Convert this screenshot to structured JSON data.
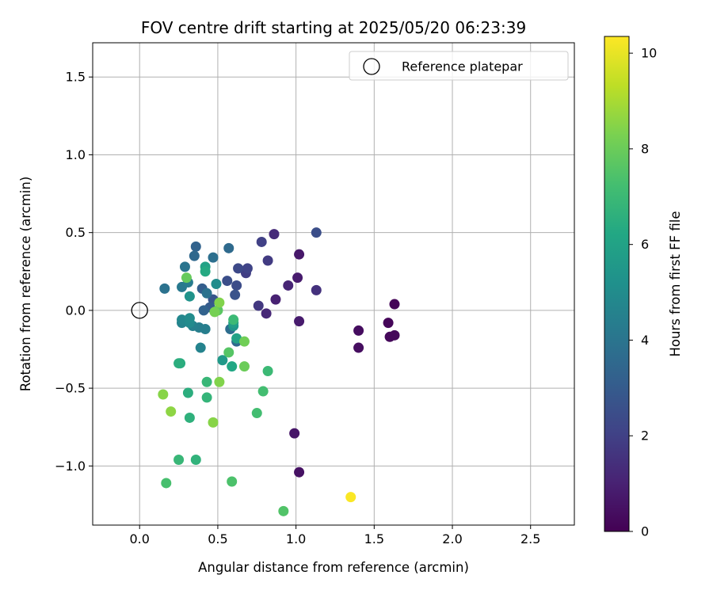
{
  "chart_data": {
    "type": "scatter",
    "title": "FOV centre drift starting at 2025/05/20 06:23:39",
    "xlabel": "Angular distance from reference (arcmin)",
    "ylabel": "Rotation from reference (arcmin)",
    "xlim": [
      -0.3,
      2.78
    ],
    "ylim": [
      -1.38,
      1.72
    ],
    "xticks": [
      0.0,
      0.5,
      1.0,
      1.5,
      2.0,
      2.5
    ],
    "xtick_labels": [
      "0.0",
      "0.5",
      "1.0",
      "1.5",
      "2.0",
      "2.5"
    ],
    "yticks": [
      -1.0,
      -0.5,
      0.0,
      0.5,
      1.0,
      1.5
    ],
    "ytick_labels": [
      "−1.0",
      "−0.5",
      "0.0",
      "0.5",
      "1.0",
      "1.5"
    ],
    "grid": true,
    "legend": {
      "placement": "top-right",
      "entries": [
        {
          "label": "Reference platepar",
          "marker": "open-circle"
        }
      ]
    },
    "reference_point": {
      "x": 0.0,
      "y": 0.0
    },
    "colorbar": {
      "label": "Hours from first FF file",
      "colormap": "viridis",
      "range": [
        0,
        10.35
      ],
      "ticks": [
        0,
        2,
        4,
        6,
        8,
        10
      ],
      "tick_labels": [
        "0",
        "2",
        "4",
        "6",
        "8",
        "10"
      ]
    },
    "points": [
      {
        "x": 1.63,
        "y": 0.04,
        "c": 0.1
      },
      {
        "x": 1.59,
        "y": -0.08,
        "c": 0.15
      },
      {
        "x": 1.6,
        "y": -0.17,
        "c": 0.2
      },
      {
        "x": 1.63,
        "y": -0.16,
        "c": 0.2
      },
      {
        "x": 1.4,
        "y": -0.13,
        "c": 0.35
      },
      {
        "x": 1.4,
        "y": -0.24,
        "c": 0.4
      },
      {
        "x": 1.02,
        "y": -1.04,
        "c": 0.5
      },
      {
        "x": 0.99,
        "y": -0.79,
        "c": 0.6
      },
      {
        "x": 1.02,
        "y": 0.36,
        "c": 0.7
      },
      {
        "x": 1.01,
        "y": 0.21,
        "c": 0.8
      },
      {
        "x": 1.02,
        "y": -0.07,
        "c": 0.8
      },
      {
        "x": 0.87,
        "y": 0.07,
        "c": 1.0
      },
      {
        "x": 0.95,
        "y": 0.16,
        "c": 1.1
      },
      {
        "x": 0.81,
        "y": -0.02,
        "c": 1.2
      },
      {
        "x": 0.86,
        "y": 0.49,
        "c": 1.3
      },
      {
        "x": 1.13,
        "y": 0.13,
        "c": 1.5
      },
      {
        "x": 0.76,
        "y": 0.03,
        "c": 1.7
      },
      {
        "x": 0.82,
        "y": 0.32,
        "c": 1.8
      },
      {
        "x": 0.68,
        "y": 0.24,
        "c": 1.9
      },
      {
        "x": 0.78,
        "y": 0.44,
        "c": 2.0
      },
      {
        "x": 0.69,
        "y": 0.27,
        "c": 2.1
      },
      {
        "x": 0.63,
        "y": 0.27,
        "c": 2.3
      },
      {
        "x": 0.62,
        "y": 0.16,
        "c": 2.4
      },
      {
        "x": 0.56,
        "y": 0.19,
        "c": 2.5
      },
      {
        "x": 1.13,
        "y": 0.5,
        "c": 2.5
      },
      {
        "x": 0.61,
        "y": 0.1,
        "c": 2.7
      },
      {
        "x": 0.47,
        "y": 0.07,
        "c": 2.8
      },
      {
        "x": 0.45,
        "y": 0.02,
        "c": 3.0
      },
      {
        "x": 0.4,
        "y": 0.14,
        "c": 3.1
      },
      {
        "x": 0.41,
        "y": 0.0,
        "c": 3.3
      },
      {
        "x": 0.36,
        "y": 0.41,
        "c": 3.3
      },
      {
        "x": 0.35,
        "y": 0.35,
        "c": 3.5
      },
      {
        "x": 0.57,
        "y": 0.4,
        "c": 3.6
      },
      {
        "x": 0.62,
        "y": -0.2,
        "c": 3.6
      },
      {
        "x": 0.58,
        "y": -0.12,
        "c": 3.7
      },
      {
        "x": 0.47,
        "y": 0.34,
        "c": 3.8
      },
      {
        "x": 0.43,
        "y": 0.11,
        "c": 3.9
      },
      {
        "x": 0.16,
        "y": 0.14,
        "c": 3.9
      },
      {
        "x": 0.29,
        "y": 0.28,
        "c": 4.0
      },
      {
        "x": 0.27,
        "y": 0.15,
        "c": 4.2
      },
      {
        "x": 0.31,
        "y": 0.18,
        "c": 4.3
      },
      {
        "x": 0.42,
        "y": -0.12,
        "c": 4.4
      },
      {
        "x": 0.38,
        "y": -0.11,
        "c": 4.4
      },
      {
        "x": 0.34,
        "y": -0.1,
        "c": 4.5
      },
      {
        "x": 0.39,
        "y": -0.24,
        "c": 4.6
      },
      {
        "x": 0.27,
        "y": -0.08,
        "c": 4.6
      },
      {
        "x": 0.27,
        "y": -0.06,
        "c": 4.8
      },
      {
        "x": 0.32,
        "y": -0.08,
        "c": 4.9
      },
      {
        "x": 0.32,
        "y": -0.05,
        "c": 5.0
      },
      {
        "x": 0.49,
        "y": 0.17,
        "c": 5.0
      },
      {
        "x": 0.32,
        "y": 0.09,
        "c": 5.3
      },
      {
        "x": 0.6,
        "y": -0.1,
        "c": 5.4
      },
      {
        "x": 0.53,
        "y": -0.32,
        "c": 5.6
      },
      {
        "x": 0.6,
        "y": -0.08,
        "c": 5.8
      },
      {
        "x": 0.62,
        "y": -0.18,
        "c": 6.0
      },
      {
        "x": 0.42,
        "y": 0.28,
        "c": 6.0
      },
      {
        "x": 0.59,
        "y": -0.36,
        "c": 6.2
      },
      {
        "x": 0.42,
        "y": 0.25,
        "c": 6.3
      },
      {
        "x": 0.26,
        "y": -0.34,
        "c": 6.4
      },
      {
        "x": 0.25,
        "y": -0.34,
        "c": 6.5
      },
      {
        "x": 0.31,
        "y": -0.53,
        "c": 6.5
      },
      {
        "x": 0.32,
        "y": -0.69,
        "c": 6.6
      },
      {
        "x": 0.36,
        "y": -0.96,
        "c": 6.7
      },
      {
        "x": 0.43,
        "y": -0.56,
        "c": 6.8
      },
      {
        "x": 0.43,
        "y": -0.46,
        "c": 6.9
      },
      {
        "x": 0.25,
        "y": -0.96,
        "c": 6.9
      },
      {
        "x": 0.6,
        "y": -0.06,
        "c": 7.0
      },
      {
        "x": 0.82,
        "y": -0.39,
        "c": 7.0
      },
      {
        "x": 0.79,
        "y": -0.52,
        "c": 7.2
      },
      {
        "x": 0.75,
        "y": -0.66,
        "c": 7.2
      },
      {
        "x": 0.17,
        "y": -1.11,
        "c": 7.3
      },
      {
        "x": 0.59,
        "y": -1.1,
        "c": 7.4
      },
      {
        "x": 0.92,
        "y": -1.29,
        "c": 7.5
      },
      {
        "x": 0.57,
        "y": -0.27,
        "c": 7.6
      },
      {
        "x": 0.5,
        "y": 0.0,
        "c": 7.7
      },
      {
        "x": 0.3,
        "y": 0.21,
        "c": 7.9
      },
      {
        "x": 0.67,
        "y": -0.36,
        "c": 8.0
      },
      {
        "x": 0.67,
        "y": -0.2,
        "c": 8.1
      },
      {
        "x": 0.48,
        "y": -0.01,
        "c": 8.2
      },
      {
        "x": 0.51,
        "y": 0.05,
        "c": 8.4
      },
      {
        "x": 0.51,
        "y": -0.46,
        "c": 8.4
      },
      {
        "x": 0.47,
        "y": -0.72,
        "c": 8.5
      },
      {
        "x": 0.15,
        "y": -0.54,
        "c": 8.5
      },
      {
        "x": 0.2,
        "y": -0.65,
        "c": 8.6
      },
      {
        "x": 1.35,
        "y": -1.2,
        "c": 10.3
      }
    ]
  }
}
